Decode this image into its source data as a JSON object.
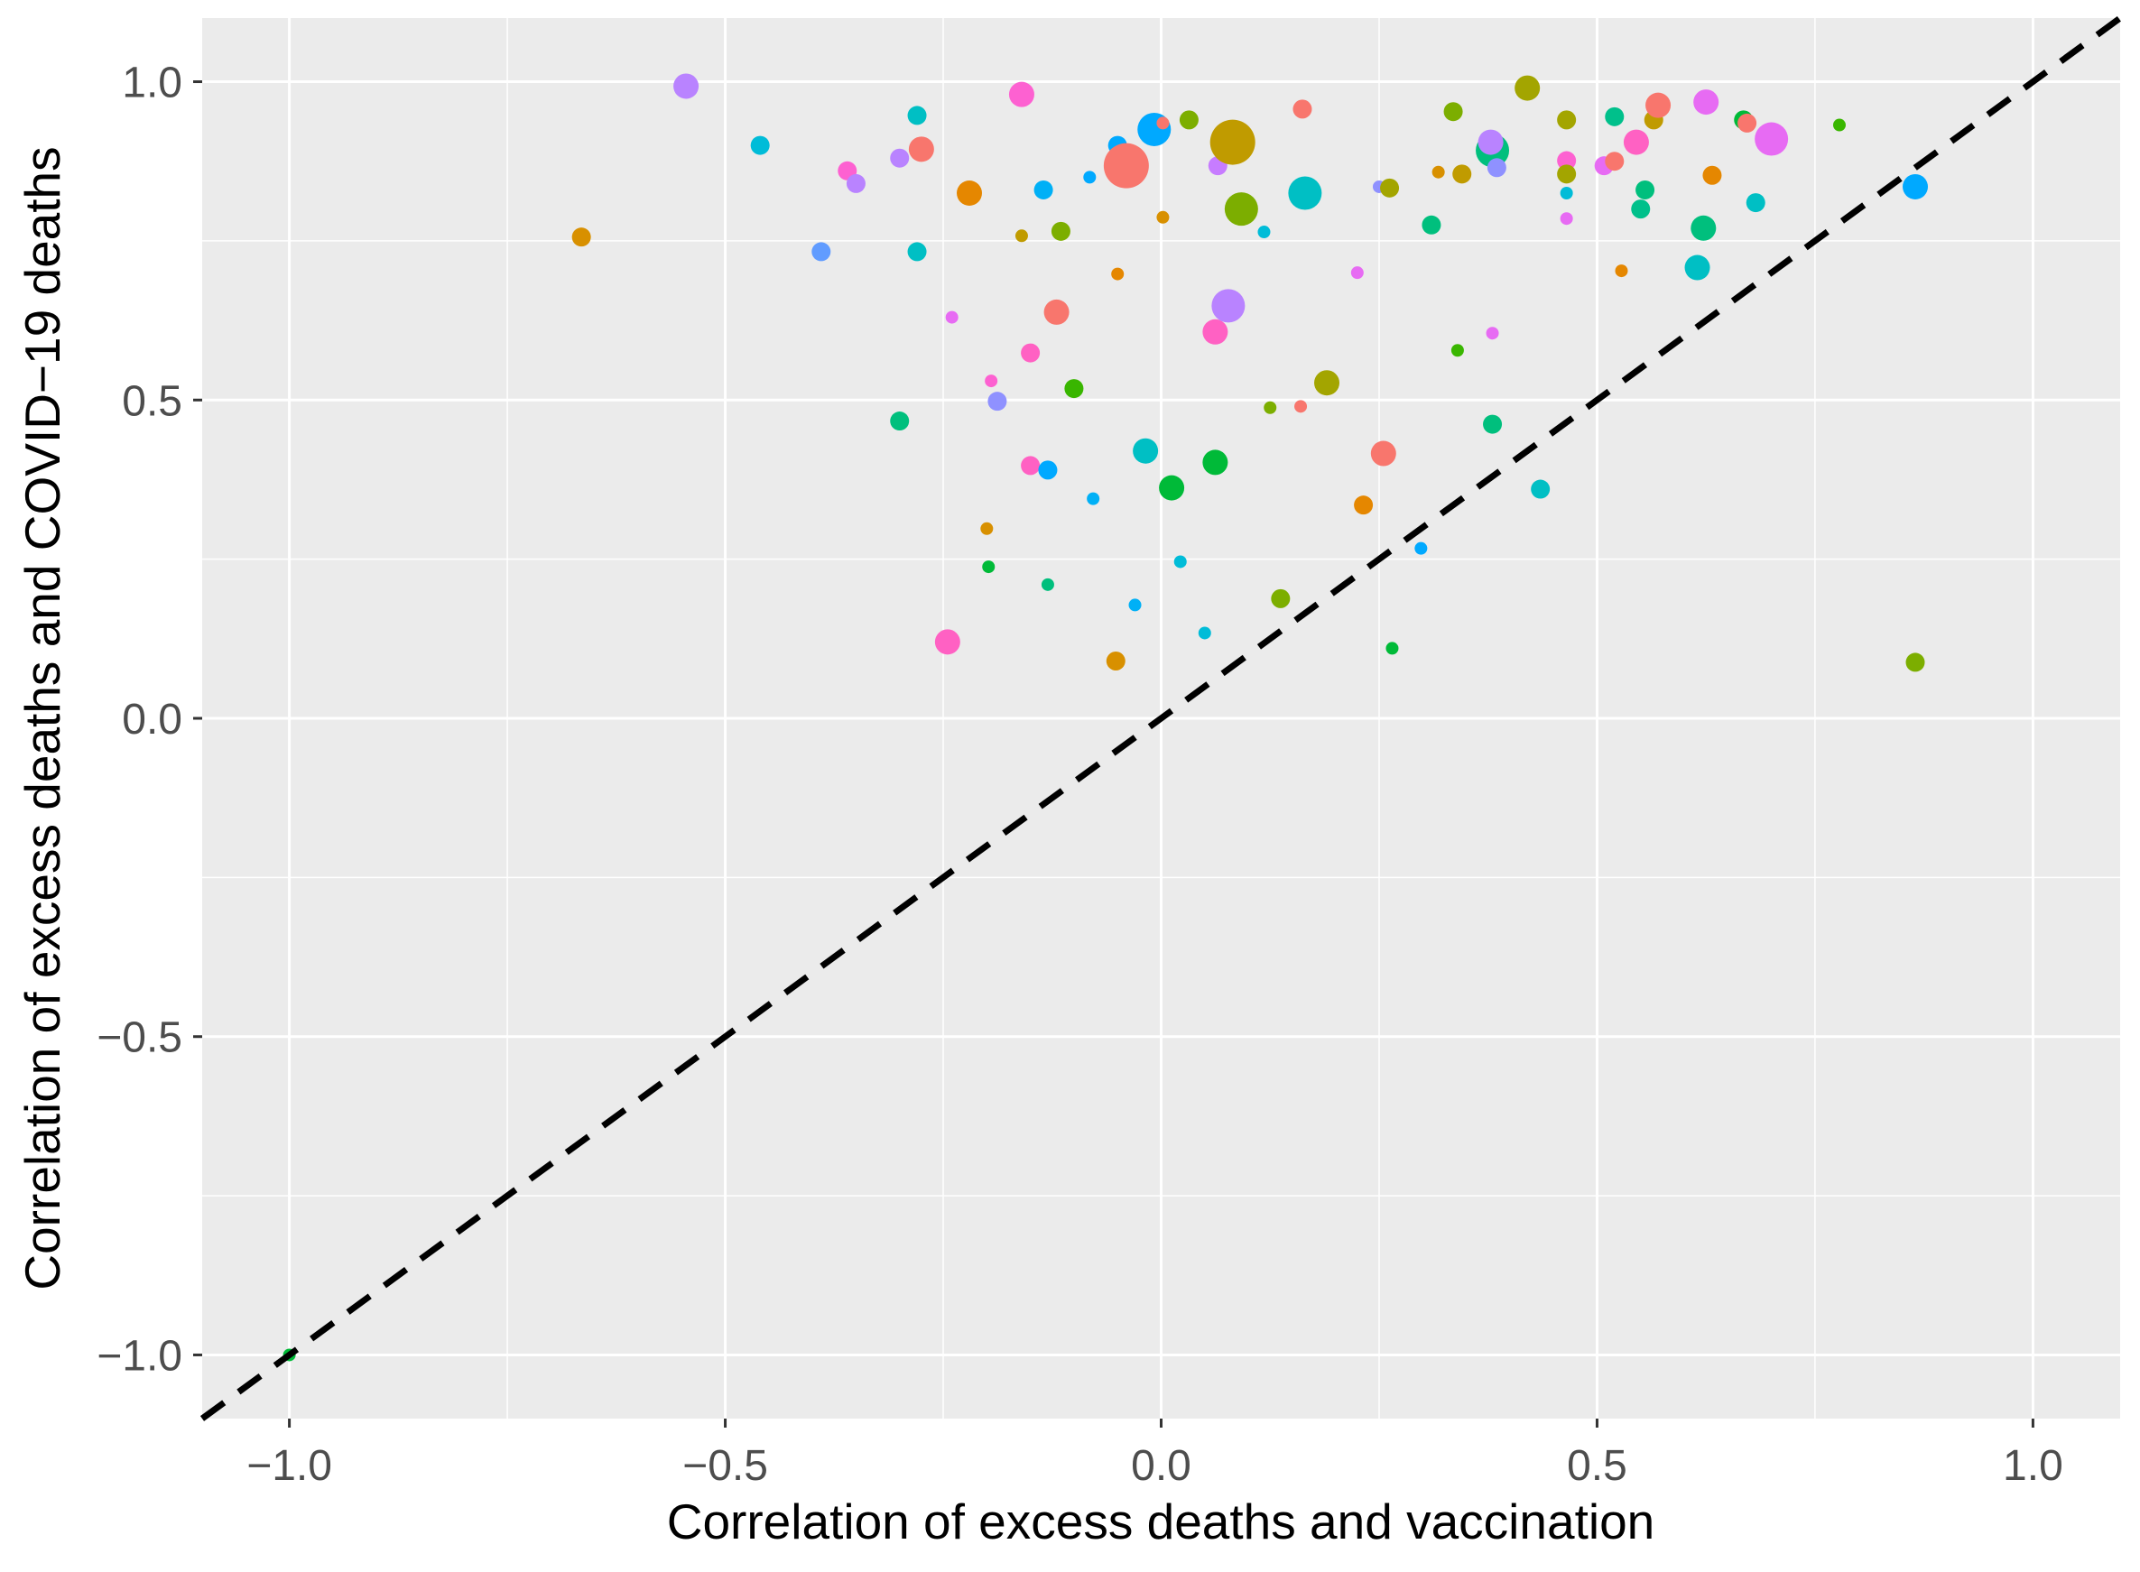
{
  "chart_data": {
    "type": "scatter",
    "title": "",
    "xlabel": "Correlation of excess deaths and vaccination",
    "ylabel": "Correlation of excess deaths and COVID−19 deaths",
    "xlim": [
      -1.1,
      1.1
    ],
    "ylim": [
      -1.1,
      1.1
    ],
    "x_major_ticks": [
      -1.0,
      -0.5,
      0.0,
      0.5,
      1.0
    ],
    "y_major_ticks": [
      -1.0,
      -0.5,
      0.0,
      0.5,
      1.0
    ],
    "x_minor_ticks": [
      -0.75,
      -0.25,
      0.25,
      0.75
    ],
    "y_minor_ticks": [
      -0.75,
      -0.25,
      0.25,
      0.75
    ],
    "x_tick_labels": [
      "−1.0",
      "−0.5",
      "0.0",
      "0.5",
      "1.0"
    ],
    "y_tick_labels": [
      "−1.0",
      "−0.5",
      "0.0",
      "0.5",
      "1.0"
    ],
    "grid": true,
    "legend": "none",
    "colors": {
      "panel": "#ebebeb",
      "grid": "#ffffff",
      "reference_line": "#000000"
    },
    "reference_line": {
      "slope": 1,
      "intercept": 0,
      "style": "dashed"
    },
    "points": [
      {
        "x": -1.0,
        "y": -1.0,
        "size": 1,
        "color": "#00ba38"
      },
      {
        "x": -0.665,
        "y": 0.756,
        "size": 2,
        "color": "#d89000"
      },
      {
        "x": -0.545,
        "y": 0.993,
        "size": 3,
        "color": "#b983ff"
      },
      {
        "x": -0.46,
        "y": 0.9,
        "size": 2,
        "color": "#00bcd8"
      },
      {
        "x": -0.36,
        "y": 0.86,
        "size": 2,
        "color": "#fd61d1"
      },
      {
        "x": -0.35,
        "y": 0.84,
        "size": 2,
        "color": "#b983ff"
      },
      {
        "x": -0.39,
        "y": 0.733,
        "size": 2,
        "color": "#619cff"
      },
      {
        "x": -0.3,
        "y": 0.88,
        "size": 2,
        "color": "#b983ff"
      },
      {
        "x": -0.28,
        "y": 0.947,
        "size": 2,
        "color": "#00bfc4"
      },
      {
        "x": -0.275,
        "y": 0.894,
        "size": 3,
        "color": "#f8766d"
      },
      {
        "x": -0.28,
        "y": 0.733,
        "size": 2,
        "color": "#00bfc4"
      },
      {
        "x": -0.3,
        "y": 0.467,
        "size": 2,
        "color": "#00bf7d"
      },
      {
        "x": -0.24,
        "y": 0.63,
        "size": 1,
        "color": "#e76bf3"
      },
      {
        "x": -0.245,
        "y": 0.12,
        "size": 3,
        "color": "#ff61c3"
      },
      {
        "x": -0.22,
        "y": 0.825,
        "size": 3,
        "color": "#e58700"
      },
      {
        "x": -0.2,
        "y": 0.298,
        "size": 1,
        "color": "#d89000"
      },
      {
        "x": -0.198,
        "y": 0.238,
        "size": 1,
        "color": "#00ba38"
      },
      {
        "x": -0.195,
        "y": 0.53,
        "size": 1,
        "color": "#fd61d1"
      },
      {
        "x": -0.188,
        "y": 0.498,
        "size": 2,
        "color": "#8f91ff"
      },
      {
        "x": -0.16,
        "y": 0.98,
        "size": 3,
        "color": "#fd61d1"
      },
      {
        "x": -0.16,
        "y": 0.758,
        "size": 1,
        "color": "#c09b00"
      },
      {
        "x": -0.15,
        "y": 0.574,
        "size": 2,
        "color": "#ff61c3"
      },
      {
        "x": -0.15,
        "y": 0.397,
        "size": 2,
        "color": "#ff61c3"
      },
      {
        "x": -0.135,
        "y": 0.83,
        "size": 2,
        "color": "#00b0f6"
      },
      {
        "x": -0.13,
        "y": 0.39,
        "size": 2,
        "color": "#00a9ff"
      },
      {
        "x": -0.13,
        "y": 0.21,
        "size": 1,
        "color": "#00bf7d"
      },
      {
        "x": -0.12,
        "y": 0.638,
        "size": 3,
        "color": "#f8766d"
      },
      {
        "x": -0.115,
        "y": 0.765,
        "size": 2,
        "color": "#7cae00"
      },
      {
        "x": -0.1,
        "y": 0.518,
        "size": 2,
        "color": "#39b600"
      },
      {
        "x": -0.082,
        "y": 0.85,
        "size": 1,
        "color": "#00a9ff"
      },
      {
        "x": -0.078,
        "y": 0.345,
        "size": 1,
        "color": "#00b0f6"
      },
      {
        "x": -0.05,
        "y": 0.9,
        "size": 2,
        "color": "#00a9ff"
      },
      {
        "x": -0.05,
        "y": 0.698,
        "size": 1,
        "color": "#e58700"
      },
      {
        "x": -0.052,
        "y": 0.09,
        "size": 2,
        "color": "#d89000"
      },
      {
        "x": -0.04,
        "y": 0.868,
        "size": 5,
        "color": "#f8766d"
      },
      {
        "x": -0.03,
        "y": 0.178,
        "size": 1,
        "color": "#00b0f6"
      },
      {
        "x": -0.018,
        "y": 0.42,
        "size": 3,
        "color": "#00bfc4"
      },
      {
        "x": -0.008,
        "y": 0.925,
        "size": 4,
        "color": "#00a9ff"
      },
      {
        "x": 0.002,
        "y": 0.935,
        "size": 1,
        "color": "#f8766d"
      },
      {
        "x": 0.002,
        "y": 0.787,
        "size": 1,
        "color": "#d89000"
      },
      {
        "x": 0.012,
        "y": 0.362,
        "size": 3,
        "color": "#00ba38"
      },
      {
        "x": 0.022,
        "y": 0.246,
        "size": 1,
        "color": "#00bcd8"
      },
      {
        "x": 0.032,
        "y": 0.94,
        "size": 2,
        "color": "#7cae00"
      },
      {
        "x": 0.05,
        "y": 0.134,
        "size": 1,
        "color": "#00bcd8"
      },
      {
        "x": 0.062,
        "y": 0.607,
        "size": 3,
        "color": "#ff61c3"
      },
      {
        "x": 0.062,
        "y": 0.402,
        "size": 3,
        "color": "#00ba38"
      },
      {
        "x": 0.065,
        "y": 0.868,
        "size": 2,
        "color": "#c77cff"
      },
      {
        "x": 0.077,
        "y": 0.648,
        "size": 4,
        "color": "#b983ff"
      },
      {
        "x": 0.082,
        "y": 0.905,
        "size": 5,
        "color": "#c09b00"
      },
      {
        "x": 0.092,
        "y": 0.8,
        "size": 4,
        "color": "#7cae00"
      },
      {
        "x": 0.118,
        "y": 0.764,
        "size": 1,
        "color": "#00bcd8"
      },
      {
        "x": 0.125,
        "y": 0.488,
        "size": 1,
        "color": "#7cae00"
      },
      {
        "x": 0.137,
        "y": 0.188,
        "size": 2,
        "color": "#7cae00"
      },
      {
        "x": 0.16,
        "y": 0.49,
        "size": 1,
        "color": "#f8766d"
      },
      {
        "x": 0.162,
        "y": 0.957,
        "size": 2,
        "color": "#f8766d"
      },
      {
        "x": 0.165,
        "y": 0.825,
        "size": 4,
        "color": "#00bfc4"
      },
      {
        "x": 0.19,
        "y": 0.527,
        "size": 3,
        "color": "#a3a500"
      },
      {
        "x": 0.225,
        "y": 0.7,
        "size": 1,
        "color": "#e76bf3"
      },
      {
        "x": 0.232,
        "y": 0.335,
        "size": 2,
        "color": "#e58700"
      },
      {
        "x": 0.25,
        "y": 0.835,
        "size": 1,
        "color": "#8f91ff"
      },
      {
        "x": 0.255,
        "y": 0.416,
        "size": 3,
        "color": "#f8766d"
      },
      {
        "x": 0.262,
        "y": 0.833,
        "size": 2,
        "color": "#a3a500"
      },
      {
        "x": 0.265,
        "y": 0.11,
        "size": 1,
        "color": "#00ba38"
      },
      {
        "x": 0.298,
        "y": 0.267,
        "size": 1,
        "color": "#00a9ff"
      },
      {
        "x": 0.31,
        "y": 0.775,
        "size": 2,
        "color": "#00bf7d"
      },
      {
        "x": 0.318,
        "y": 0.858,
        "size": 1,
        "color": "#d89000"
      },
      {
        "x": 0.335,
        "y": 0.953,
        "size": 2,
        "color": "#7cae00"
      },
      {
        "x": 0.34,
        "y": 0.578,
        "size": 1,
        "color": "#39b600"
      },
      {
        "x": 0.345,
        "y": 0.855,
        "size": 2,
        "color": "#c09b00"
      },
      {
        "x": 0.38,
        "y": 0.892,
        "size": 4,
        "color": "#00bf7d"
      },
      {
        "x": 0.378,
        "y": 0.905,
        "size": 3,
        "color": "#b983ff"
      },
      {
        "x": 0.38,
        "y": 0.605,
        "size": 1,
        "color": "#e76bf3"
      },
      {
        "x": 0.38,
        "y": 0.462,
        "size": 2,
        "color": "#00bf7d"
      },
      {
        "x": 0.385,
        "y": 0.865,
        "size": 2,
        "color": "#8f91ff"
      },
      {
        "x": 0.435,
        "y": 0.36,
        "size": 2,
        "color": "#00bfc4"
      },
      {
        "x": 0.42,
        "y": 0.99,
        "size": 3,
        "color": "#a3a500"
      },
      {
        "x": 0.465,
        "y": 0.94,
        "size": 2,
        "color": "#a3a500"
      },
      {
        "x": 0.465,
        "y": 0.876,
        "size": 2,
        "color": "#fd61d1"
      },
      {
        "x": 0.465,
        "y": 0.855,
        "size": 2,
        "color": "#a3a500"
      },
      {
        "x": 0.465,
        "y": 0.825,
        "size": 1,
        "color": "#00bcd8"
      },
      {
        "x": 0.465,
        "y": 0.785,
        "size": 1,
        "color": "#e76bf3"
      },
      {
        "x": 0.508,
        "y": 0.868,
        "size": 2,
        "color": "#e76bf3"
      },
      {
        "x": 0.52,
        "y": 0.875,
        "size": 2,
        "color": "#f8766d"
      },
      {
        "x": 0.52,
        "y": 0.945,
        "size": 2,
        "color": "#00c08b"
      },
      {
        "x": 0.528,
        "y": 0.703,
        "size": 1,
        "color": "#e58700"
      },
      {
        "x": 0.545,
        "y": 0.905,
        "size": 3,
        "color": "#ff61c3"
      },
      {
        "x": 0.55,
        "y": 0.8,
        "size": 2,
        "color": "#00c08b"
      },
      {
        "x": 0.555,
        "y": 0.83,
        "size": 2,
        "color": "#00bf7d"
      },
      {
        "x": 0.565,
        "y": 0.94,
        "size": 2,
        "color": "#c09b00"
      },
      {
        "x": 0.57,
        "y": 0.963,
        "size": 3,
        "color": "#f8766d"
      },
      {
        "x": 0.615,
        "y": 0.708,
        "size": 3,
        "color": "#00bfc4"
      },
      {
        "x": 0.622,
        "y": 0.77,
        "size": 3,
        "color": "#00bf7d"
      },
      {
        "x": 0.625,
        "y": 0.968,
        "size": 3,
        "color": "#e76bf3"
      },
      {
        "x": 0.632,
        "y": 0.853,
        "size": 2,
        "color": "#e58700"
      },
      {
        "x": 0.668,
        "y": 0.94,
        "size": 2,
        "color": "#00ba38"
      },
      {
        "x": 0.672,
        "y": 0.935,
        "size": 2,
        "color": "#f8766d"
      },
      {
        "x": 0.682,
        "y": 0.81,
        "size": 2,
        "color": "#00bfc4"
      },
      {
        "x": 0.7,
        "y": 0.91,
        "size": 4,
        "color": "#e76bf3"
      },
      {
        "x": 0.778,
        "y": 0.932,
        "size": 1,
        "color": "#39b600"
      },
      {
        "x": 0.865,
        "y": 0.835,
        "size": 3,
        "color": "#00a9ff"
      },
      {
        "x": 0.865,
        "y": 0.088,
        "size": 2,
        "color": "#7cae00"
      }
    ]
  }
}
